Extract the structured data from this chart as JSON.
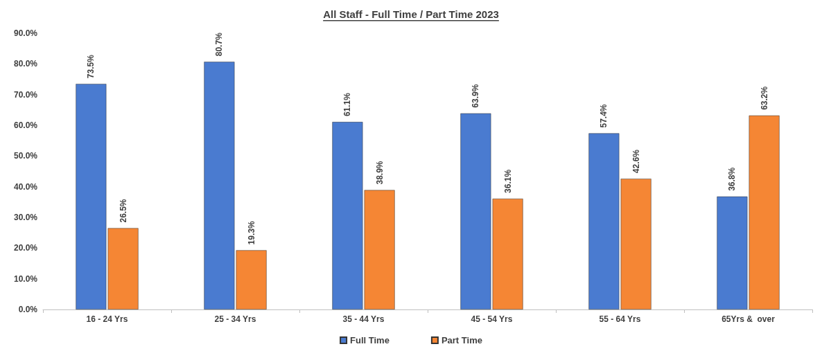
{
  "chart_data": {
    "type": "bar",
    "title": "All Staff - Full Time / Part Time 2023",
    "categories": [
      "16 - 24 Yrs",
      "25 - 34 Yrs",
      "35 - 44 Yrs",
      "45 - 54 Yrs",
      "55 - 64 Yrs",
      "65Yrs &  over"
    ],
    "series": [
      {
        "name": "Full Time",
        "color": "#4a7bd0",
        "values": [
          73.5,
          80.7,
          61.1,
          63.9,
          57.4,
          36.8
        ],
        "value_labels": [
          "73.5%",
          "80.7%",
          "61.1%",
          "63.9%",
          "57.4%",
          "36.8%"
        ]
      },
      {
        "name": "Part Time",
        "color": "#f58634",
        "values": [
          26.5,
          19.3,
          38.9,
          36.1,
          42.6,
          63.2
        ],
        "value_labels": [
          "26.5%",
          "19.3%",
          "38.9%",
          "36.1%",
          "42.6%",
          "63.2%"
        ]
      }
    ],
    "ylim": [
      0,
      90
    ],
    "yticks": [
      {
        "value": 0,
        "label": "0.0%"
      },
      {
        "value": 10,
        "label": "10.0%"
      },
      {
        "value": 20,
        "label": "20.0%"
      },
      {
        "value": 30,
        "label": "30.0%"
      },
      {
        "value": 40,
        "label": "40.0%"
      },
      {
        "value": 50,
        "label": "50.0%"
      },
      {
        "value": 60,
        "label": "60.0%"
      },
      {
        "value": 70,
        "label": "70.0%"
      },
      {
        "value": 80,
        "label": "80.0%"
      },
      {
        "value": 90,
        "label": "90.0%"
      }
    ],
    "grid": false,
    "legend": "bottom"
  }
}
